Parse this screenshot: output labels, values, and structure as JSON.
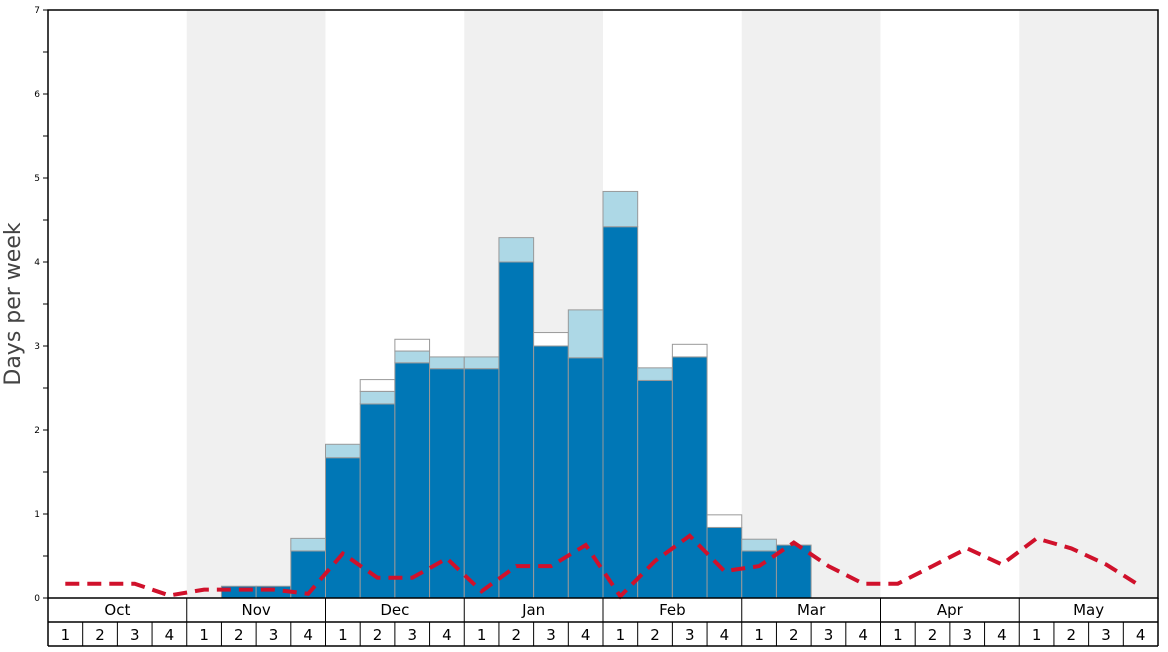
{
  "chart_data": {
    "type": "bar",
    "ylabel": "Days per week",
    "ylim": [
      0,
      7
    ],
    "y_ticks": [
      0,
      1,
      2,
      3,
      4,
      5,
      6,
      7
    ],
    "months": [
      "Oct",
      "Nov",
      "Dec",
      "Jan",
      "Feb",
      "Mar",
      "Apr",
      "May"
    ],
    "weeks": [
      "1",
      "2",
      "3",
      "4"
    ],
    "grid": false,
    "alternating_month_shading": true,
    "series": [
      {
        "values": [
          0,
          0,
          0,
          0,
          0,
          0.14,
          0.14,
          0.56,
          1.67,
          2.31,
          2.8,
          2.73,
          2.73,
          4.0,
          3.0,
          2.86,
          4.42,
          2.59,
          2.87,
          0.84,
          0.56,
          0.63,
          0,
          0,
          0,
          0,
          0,
          0,
          0,
          0,
          0,
          0
        ],
        "color": "#0077b6"
      },
      {
        "values": [
          0,
          0,
          0,
          0,
          0,
          0,
          0,
          0,
          0,
          0.14,
          0.14,
          0,
          0,
          0,
          0.16,
          0,
          0,
          0,
          0.15,
          0.15,
          0,
          0,
          0,
          0,
          0,
          0,
          0,
          0,
          0,
          0,
          0,
          0
        ],
        "color": "#ffffff"
      },
      {
        "values": [
          0,
          0,
          0,
          0,
          0,
          0,
          0,
          0.15,
          0.16,
          0.15,
          0.14,
          0.14,
          0.14,
          0.29,
          0,
          0.57,
          0.42,
          0.15,
          0,
          0,
          0.14,
          0,
          0,
          0,
          0,
          0,
          0,
          0,
          0,
          0,
          0,
          0
        ],
        "color": "#add8e6"
      }
    ],
    "stack_order": [
      0,
      2,
      1
    ],
    "line": {
      "values": [
        0.17,
        0.17,
        0.17,
        0.03,
        0.1,
        0.1,
        0.1,
        0.05,
        0.53,
        0.24,
        0.24,
        0.47,
        0.08,
        0.38,
        0.38,
        0.63,
        0.02,
        0.44,
        0.74,
        0.32,
        0.38,
        0.66,
        0.38,
        0.17,
        0.17,
        0.38,
        0.59,
        0.4,
        0.71,
        0.59,
        0.4,
        0.14
      ],
      "color": "#d0112b",
      "style": "dashed"
    }
  },
  "colors": {
    "shade": "#f0f0f0",
    "bar_edge": "#999999",
    "axis": "#000000"
  }
}
